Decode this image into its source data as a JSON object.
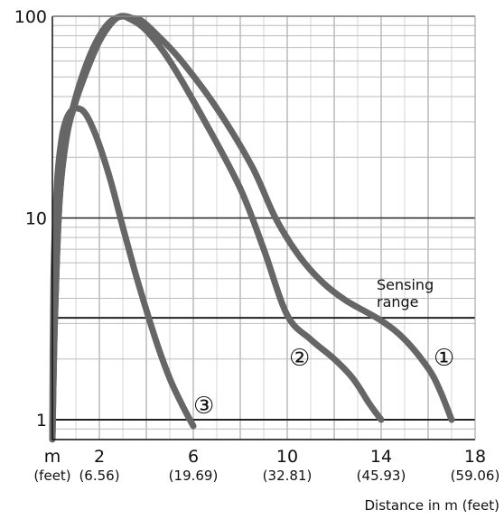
{
  "chart_data": {
    "type": "line",
    "title": "",
    "xlabel": "Distance in m (feet)",
    "ylabel": "",
    "yscale": "log",
    "ylim": [
      0.7,
      100
    ],
    "xlim": [
      0,
      18
    ],
    "grid": true,
    "y_ticks": [
      "100",
      "10",
      "1"
    ],
    "x_ticks": [
      {
        "value": 0,
        "label": "m",
        "sub": "(feet)"
      },
      {
        "value": 2,
        "label": "2",
        "sub": "(6.56)"
      },
      {
        "value": 6,
        "label": "6",
        "sub": "(19.69)"
      },
      {
        "value": 10,
        "label": "10",
        "sub": "(32.81)"
      },
      {
        "value": 14,
        "label": "14",
        "sub": "(45.93)"
      },
      {
        "value": 18,
        "label": "18",
        "sub": "(59.06)"
      }
    ],
    "reference_line": {
      "y": 3.2,
      "label_line1": "Sensing",
      "label_line2": "range"
    },
    "series": [
      {
        "marker": "①",
        "color": "#666666",
        "x": [
          0,
          0.1,
          0.3,
          0.6,
          1,
          1.5,
          2,
          2.5,
          3,
          3.4,
          3.8,
          4.5,
          5.5,
          7,
          8.5,
          9.5,
          10.5,
          11.5,
          12.5,
          14,
          15,
          16,
          16.5,
          17
        ],
        "y": [
          0.8,
          3,
          12,
          25,
          40,
          60,
          80,
          95,
          100,
          98,
          95,
          80,
          60,
          35,
          18,
          10,
          6.5,
          4.8,
          3.9,
          3.1,
          2.5,
          1.8,
          1.4,
          1.0
        ]
      },
      {
        "marker": "②",
        "color": "#666666",
        "x": [
          0,
          0.1,
          0.3,
          0.6,
          1,
          1.5,
          2,
          2.5,
          2.9,
          3.3,
          4,
          5,
          6.5,
          8,
          9,
          10,
          11,
          12,
          12.8,
          13.5,
          14
        ],
        "y": [
          0.8,
          3,
          12,
          25,
          38,
          55,
          75,
          92,
          100,
          97,
          85,
          60,
          30,
          14,
          7,
          3.3,
          2.5,
          2.0,
          1.6,
          1.2,
          1.0
        ]
      },
      {
        "marker": "③",
        "color": "#666666",
        "x": [
          0,
          0.05,
          0.2,
          0.4,
          0.6,
          0.8,
          1.0,
          1.3,
          1.6,
          2.0,
          2.5,
          3.0,
          3.5,
          4.0,
          4.5,
          5.0,
          5.5,
          6.0
        ],
        "y": [
          0.8,
          5,
          15,
          25,
          31,
          34,
          35,
          34,
          30,
          23,
          15,
          9,
          5.5,
          3.5,
          2.3,
          1.6,
          1.2,
          0.93
        ]
      }
    ]
  }
}
